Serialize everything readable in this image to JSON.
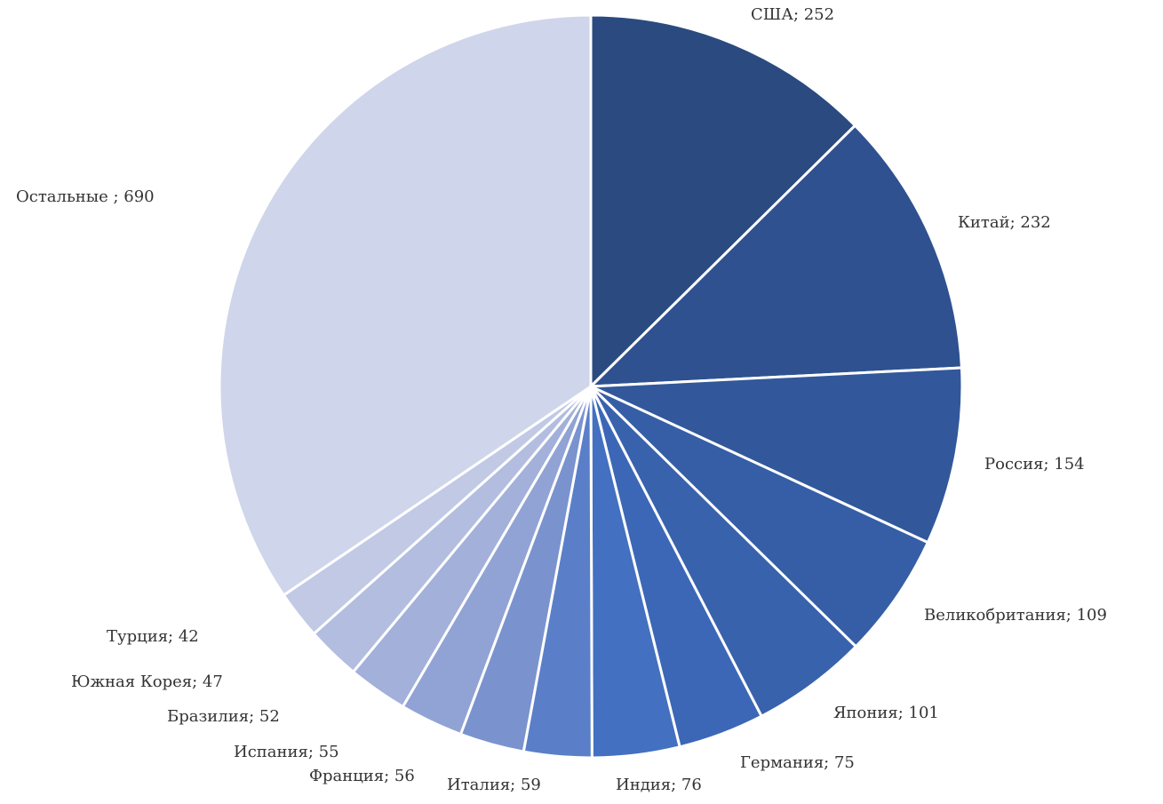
{
  "chart_data": {
    "type": "pie",
    "values": [
      252,
      232,
      154,
      109,
      101,
      75,
      76,
      59,
      56,
      55,
      52,
      47,
      42,
      690
    ],
    "value_labels": [
      "США; 252",
      "Китай; 232",
      "Россия; 154",
      "Великобритания; 109",
      "Япония; 101",
      "Германия; 75",
      "Индия; 76",
      "Италия; 59",
      "Франция; 56",
      "Испания; 55",
      "Бразилия; 52",
      "Южная Корея; 47",
      "Турция; 42",
      "Остальные ; 690"
    ],
    "colors": [
      "#2b4a80",
      "#2f5190",
      "#32589b",
      "#365ea6",
      "#3962ad",
      "#3c67b7",
      "#4370c0",
      "#5a7fc8",
      "#7a93cf",
      "#91a3d4",
      "#a2b0da",
      "#b2bddf",
      "#c1c9e5",
      "#cfd5ea"
    ]
  }
}
